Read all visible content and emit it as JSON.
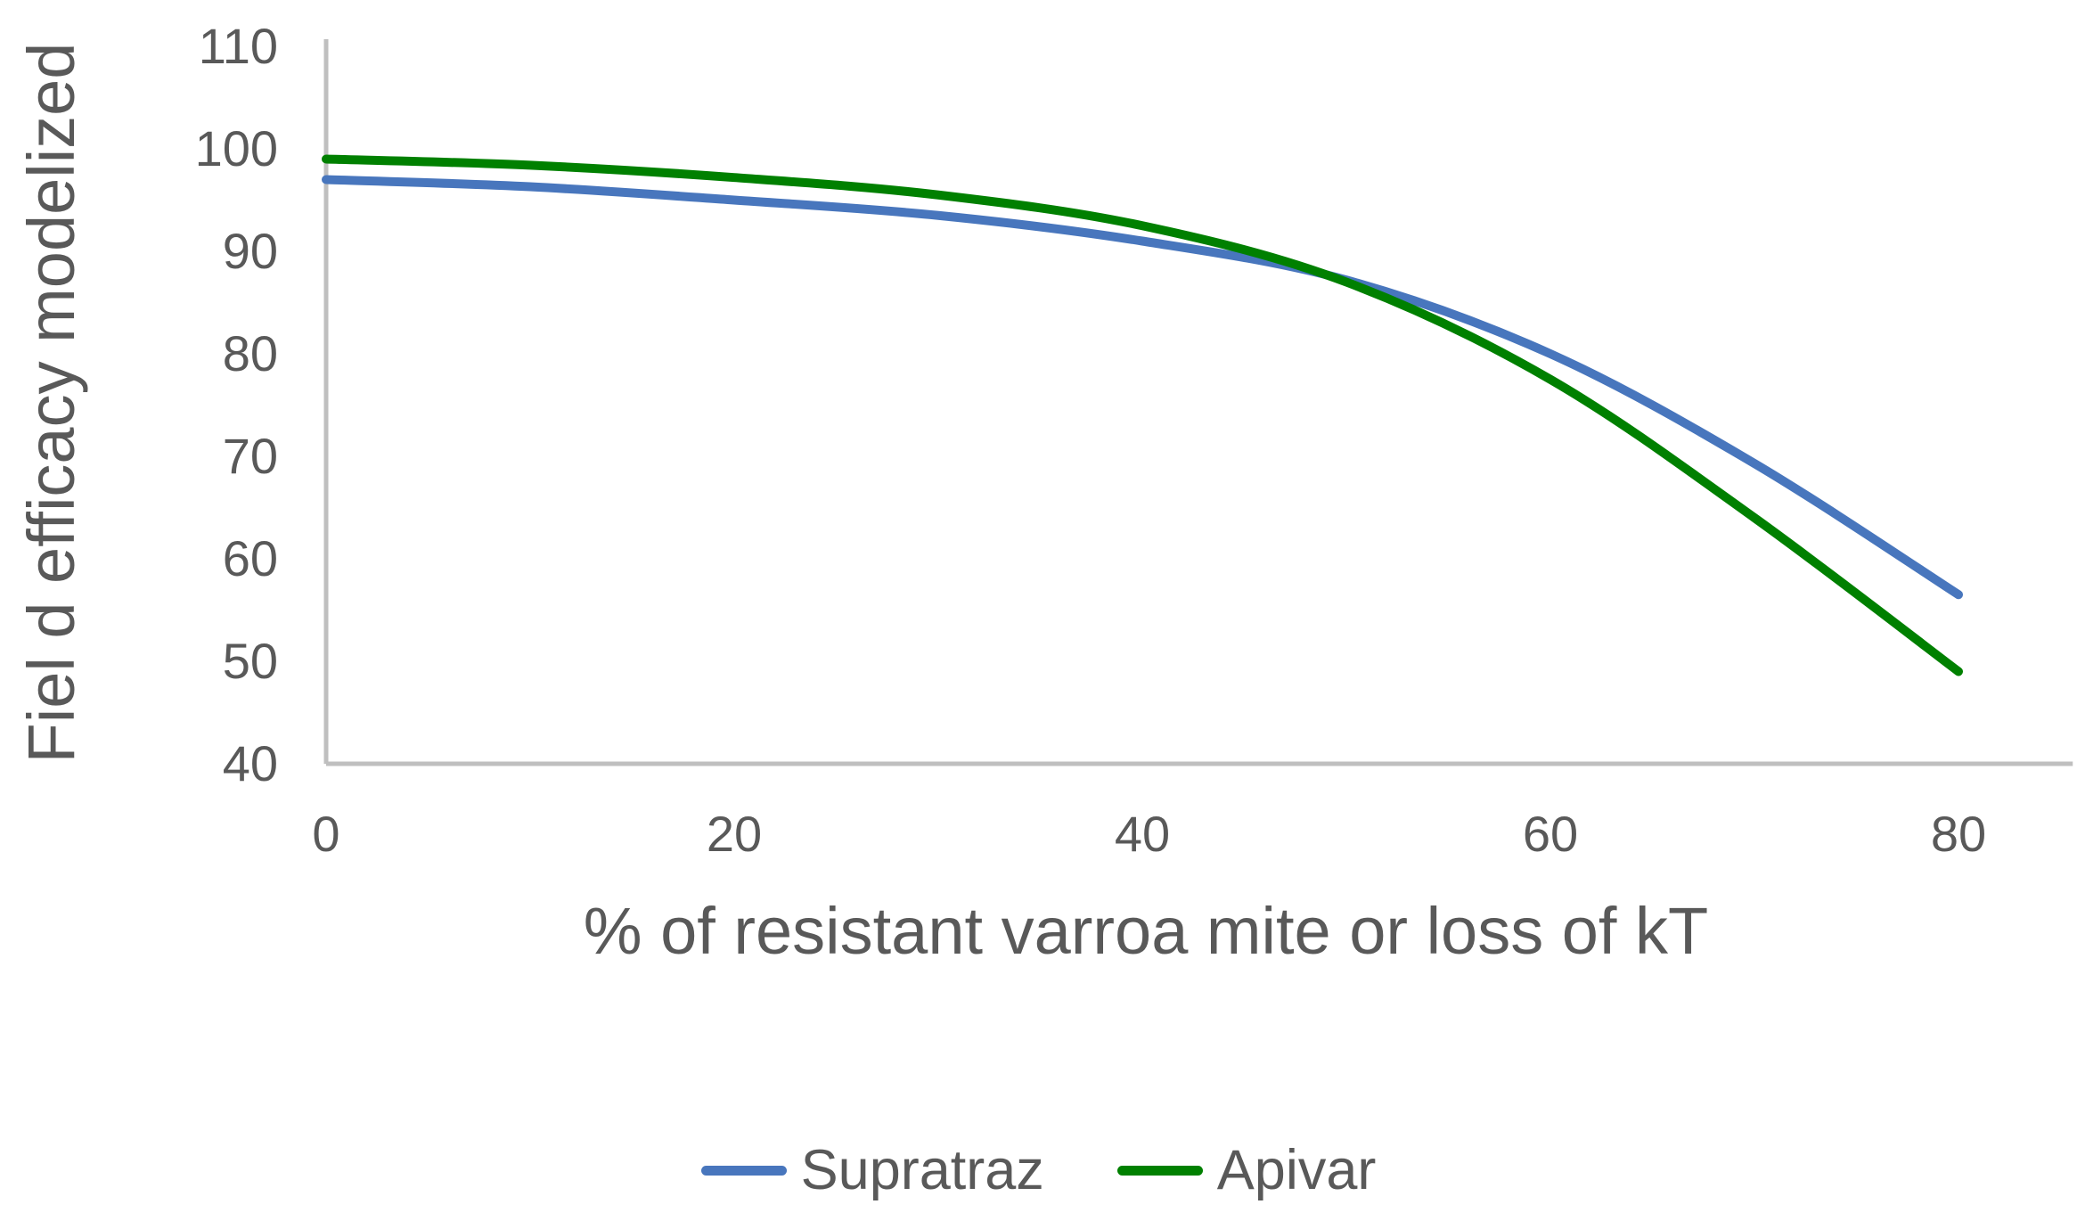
{
  "chart_data": {
    "type": "line",
    "title": "",
    "xlabel": "% of resistant varroa mite or loss of kT",
    "ylabel": "Fiel d efficacy modelized",
    "x": [
      0,
      10,
      20,
      30,
      40,
      50,
      60,
      70,
      80
    ],
    "series": [
      {
        "name": "Supratraz",
        "color": "#4876BD",
        "values": [
          97,
          96.3,
          95,
          93.5,
          91,
          87.2,
          80,
          69.3,
          56.5
        ]
      },
      {
        "name": "Apivar",
        "color": "#008000",
        "values": [
          99,
          98.4,
          97.2,
          95.5,
          92.5,
          87,
          77.5,
          64,
          49
        ]
      }
    ],
    "x_ticks": [
      0,
      20,
      40,
      60,
      80
    ],
    "y_ticks": [
      40,
      50,
      60,
      70,
      80,
      90,
      100,
      110
    ],
    "xlim": [
      0,
      85.6
    ],
    "ylim": [
      40,
      110
    ],
    "grid": false,
    "legend_position": "bottom",
    "axis_color": "#BFBFBF",
    "text_color": "#595959"
  }
}
